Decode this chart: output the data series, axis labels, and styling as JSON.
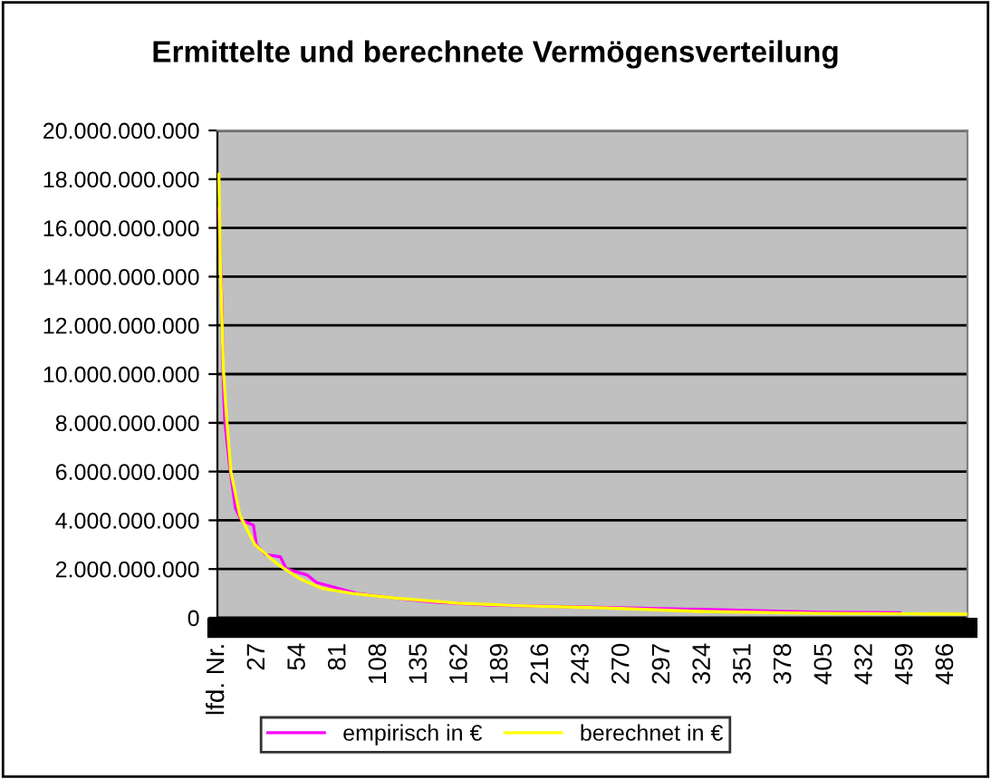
{
  "chart_data": {
    "type": "line",
    "title": "Ermittelte und berechnete Vermögensverteilung",
    "xlim": [
      0,
      500
    ],
    "xticks": [
      {
        "value": 0,
        "label": "lfd. Nr."
      },
      27,
      54,
      81,
      108,
      135,
      162,
      189,
      216,
      243,
      270,
      297,
      324,
      351,
      378,
      405,
      432,
      459,
      486
    ],
    "ylim": [
      0,
      20000000000
    ],
    "yticks": [
      {
        "value": 0,
        "label": "0"
      },
      {
        "value": 2000000000,
        "label": "2.000.000.000"
      },
      {
        "value": 4000000000,
        "label": "4.000.000.000"
      },
      {
        "value": 6000000000,
        "label": "6.000.000.000"
      },
      {
        "value": 8000000000,
        "label": "8.000.000.000"
      },
      {
        "value": 10000000000,
        "label": "10.000.000.000"
      },
      {
        "value": 12000000000,
        "label": "12.000.000.000"
      },
      {
        "value": 14000000000,
        "label": "14.000.000.000"
      },
      {
        "value": 16000000000,
        "label": "16.000.000.000"
      },
      {
        "value": 18000000000,
        "label": "18.000.000.000"
      },
      {
        "value": 20000000000,
        "label": "20.000.000.000"
      }
    ],
    "grid": "y",
    "legend": "bottom",
    "marker": "none",
    "line_style": "solid",
    "series": [
      {
        "name": "empirisch in €",
        "color": "#ff00ff",
        "x": [
          1,
          3,
          4,
          5,
          8,
          12,
          16,
          24,
          26,
          32,
          42,
          46,
          60,
          66,
          93,
          125,
          145,
          182,
          274,
          335,
          403,
          455
        ],
        "values": [
          16800000000,
          12700000000,
          9500000000,
          8000000000,
          6300000000,
          4500000000,
          4000000000,
          3800000000,
          3000000000,
          2600000000,
          2500000000,
          2000000000,
          1750000000,
          1450000000,
          1000000000,
          760000000,
          640000000,
          520000000,
          400000000,
          330000000,
          230000000,
          210000000
        ]
      },
      {
        "name": "berechnet in €",
        "color": "#ffff00",
        "x": [
          1,
          2,
          4,
          6,
          9,
          15,
          25,
          40,
          55,
          70,
          90,
          120,
          160,
          200,
          260,
          320,
          400,
          460,
          500
        ],
        "values": [
          18200000000,
          14500000000,
          10200000000,
          8300000000,
          6000000000,
          4200000000,
          3000000000,
          2200000000,
          1600000000,
          1200000000,
          1000000000,
          800000000,
          600000000,
          500000000,
          400000000,
          260000000,
          180000000,
          160000000,
          150000000
        ]
      }
    ]
  }
}
